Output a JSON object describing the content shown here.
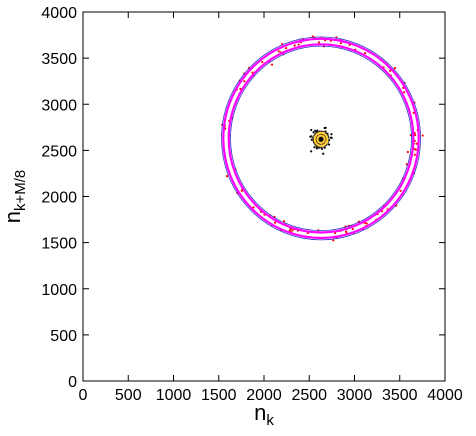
{
  "chart_data": {
    "type": "scatter",
    "title": "",
    "xlabel": {
      "base": "n",
      "sub": "k"
    },
    "ylabel": {
      "base": "n",
      "sub": "k+M/8"
    },
    "xlim": [
      0,
      4000
    ],
    "ylim": [
      0,
      4000
    ],
    "xticks": [
      0,
      500,
      1000,
      1500,
      2000,
      2500,
      3000,
      3500,
      4000
    ],
    "yticks": [
      0,
      500,
      1000,
      1500,
      2000,
      2500,
      3000,
      3500,
      4000
    ],
    "grid": false,
    "legend": "none",
    "colors": {
      "ring_band": "#ff00ff",
      "ring_edges": "#3333cc",
      "ring_points": "#ff0000",
      "cluster_points": "#000000",
      "cluster_band": "#ffcc33",
      "cluster_edges": "#333333"
    },
    "series": [
      {
        "kind": "ring",
        "center": [
          2630,
          2630
        ],
        "radius": 1050,
        "band_half_width": 30,
        "outer_edge_radius": 1100,
        "inner_edge_radius": 1000,
        "point_count": 130,
        "point_scatter_sd": 35
      },
      {
        "kind": "cluster",
        "center": [
          2630,
          2620
        ],
        "radius": 55,
        "band_half_width": 15,
        "outer_edge_radius": 90,
        "inner_edge_radius": 25,
        "point_count": 160,
        "point_scatter_sd": 60
      }
    ]
  }
}
